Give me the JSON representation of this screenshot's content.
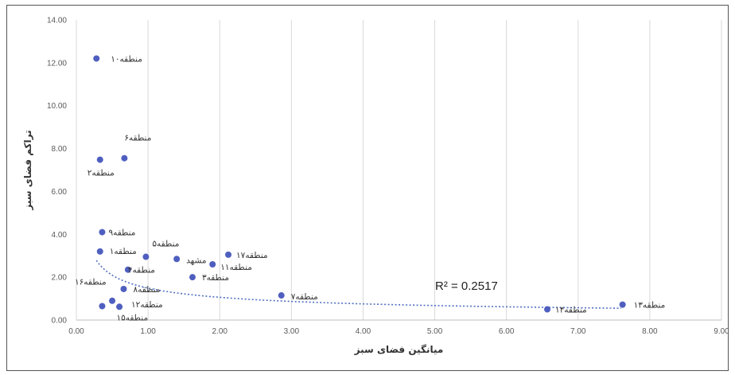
{
  "chart_data": {
    "type": "scatter",
    "xlabel": "میانگین فضای سبز",
    "ylabel": "تراکم فضای سبز",
    "xlim": [
      0,
      9
    ],
    "ylim": [
      0,
      14
    ],
    "x_ticks": [
      "0.00",
      "1.00",
      "2.00",
      "3.00",
      "4.00",
      "5.00",
      "6.00",
      "7.00",
      "8.00",
      "9.00"
    ],
    "y_ticks": [
      "0.00",
      "2.00",
      "4.00",
      "6.00",
      "8.00",
      "10.00",
      "12.00",
      "14.00"
    ],
    "grid": "vertical",
    "marker_color": "#4f5fbf",
    "trendline_color": "#4f6fc0",
    "trendline": {
      "type": "power",
      "r2_label": "R² = 0.2517",
      "fit": {
        "a": 1.49,
        "b": -0.49
      }
    },
    "points": [
      {
        "name": "منطقه۱۰",
        "x": 0.28,
        "y": 12.2
      },
      {
        "name": "منطقه۶",
        "x": 0.67,
        "y": 7.55
      },
      {
        "name": "منطقه۲",
        "x": 0.33,
        "y": 7.48
      },
      {
        "name": "منطقه۹",
        "x": 0.36,
        "y": 4.1
      },
      {
        "name": "منطقه۱",
        "x": 0.33,
        "y": 3.2
      },
      {
        "name": "منطقه۵",
        "x": 0.97,
        "y": 2.95
      },
      {
        "name": "منطقه۴",
        "x": 0.72,
        "y": 2.35
      },
      {
        "name": "مشهد",
        "x": 1.4,
        "y": 2.85
      },
      {
        "name": "منطقه۱۱",
        "x": 1.9,
        "y": 2.6
      },
      {
        "name": "منطقه۱۷",
        "x": 2.12,
        "y": 3.05
      },
      {
        "name": "منطقه۳",
        "x": 1.62,
        "y": 2.0
      },
      {
        "name": "منطقه۱۶",
        "x": 0.0,
        "y": 1.8
      },
      {
        "name": "منطقه۸",
        "x": 0.66,
        "y": 1.45
      },
      {
        "name": "منطقه۱۲",
        "x": 0.5,
        "y": 0.9
      },
      {
        "name": "منطقه۱۵",
        "x": 0.36,
        "y": 0.65
      },
      {
        "name": "",
        "x": 0.6,
        "y": 0.62
      },
      {
        "name": "منطقه۷",
        "x": 2.86,
        "y": 1.15
      },
      {
        "name": "منطقه۱۴",
        "x": 6.57,
        "y": 0.5
      },
      {
        "name": "منطقه۱۳",
        "x": 7.62,
        "y": 0.72
      }
    ]
  }
}
